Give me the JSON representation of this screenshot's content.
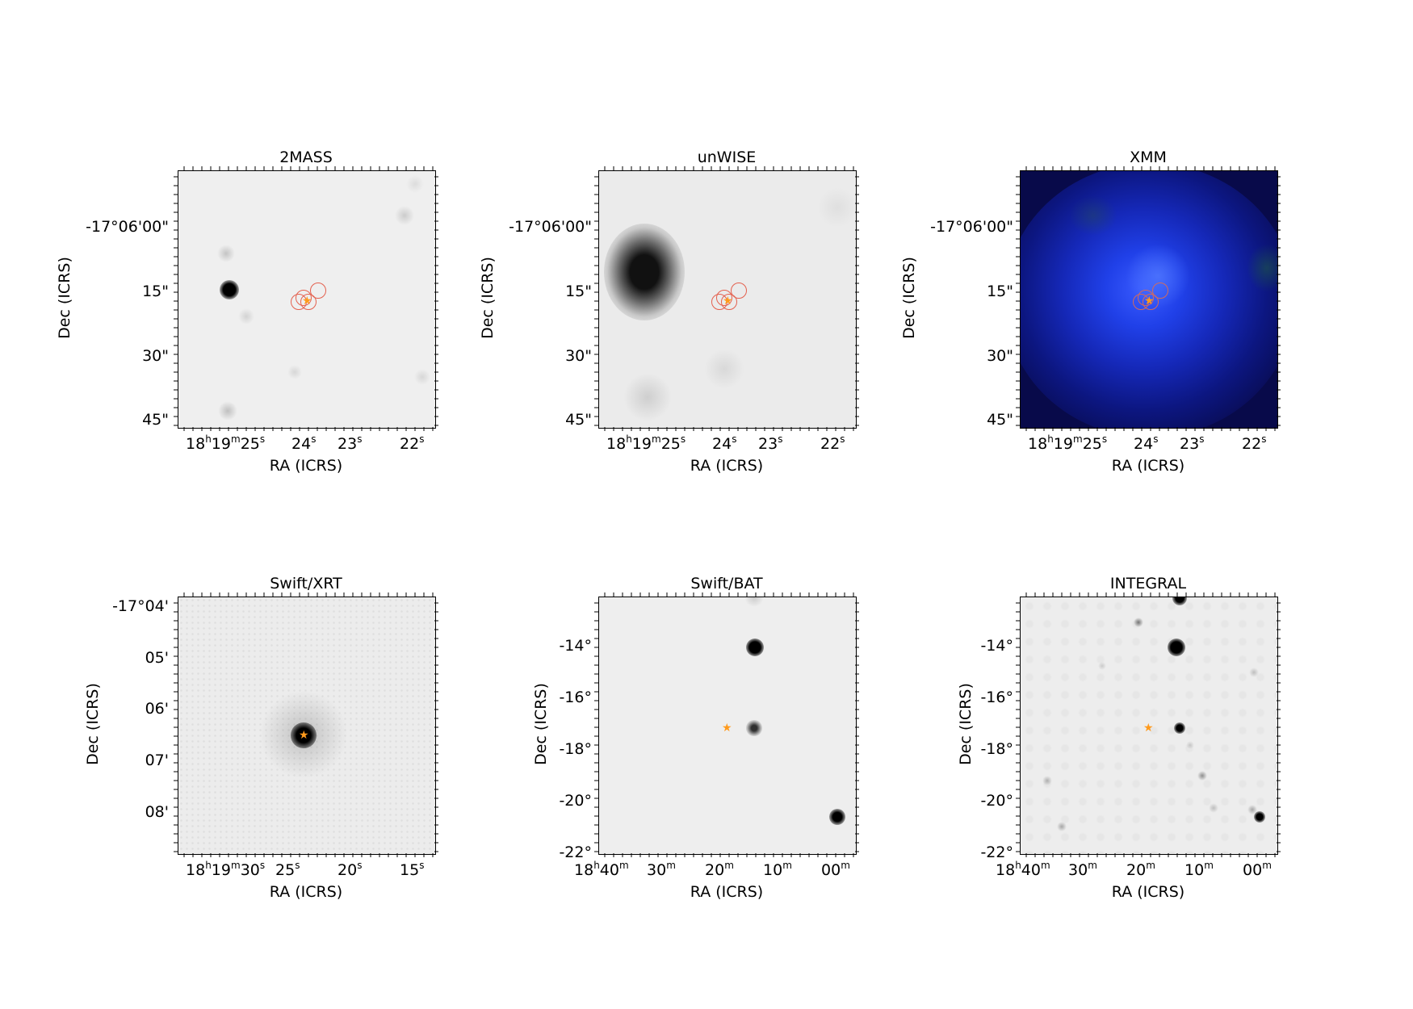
{
  "panels": [
    {
      "title": "2MASS",
      "xlabel": "RA (ICRS)",
      "ylabel": "Dec (ICRS)",
      "xticks": [
        "18h19m25s",
        "24s",
        "23s",
        "22s"
      ],
      "yticks": [
        "-17°06'00\"",
        "15\"",
        "30\"",
        "45\""
      ]
    },
    {
      "title": "unWISE",
      "xlabel": "RA (ICRS)",
      "ylabel": "Dec (ICRS)",
      "xticks": [
        "18h19m25s",
        "24s",
        "23s",
        "22s"
      ],
      "yticks": [
        "-17°06'00\"",
        "15\"",
        "30\"",
        "45\""
      ]
    },
    {
      "title": "XMM",
      "xlabel": "RA (ICRS)",
      "ylabel": "Dec (ICRS)",
      "xticks": [
        "18h19m25s",
        "24s",
        "23s",
        "22s"
      ],
      "yticks": [
        "-17°06'00\"",
        "15\"",
        "30\"",
        "45\""
      ]
    },
    {
      "title": "Swift/XRT",
      "xlabel": "RA (ICRS)",
      "ylabel": "Dec (ICRS)",
      "xticks": [
        "18h19m30s",
        "25s",
        "20s",
        "15s"
      ],
      "yticks": [
        "-17°04'",
        "05'",
        "06'",
        "07'",
        "08'"
      ]
    },
    {
      "title": "Swift/BAT",
      "xlabel": "RA (ICRS)",
      "ylabel": "Dec (ICRS)",
      "xticks": [
        "18h40m",
        "30m",
        "20m",
        "10m",
        "00m"
      ],
      "yticks": [
        "-14°",
        "-16°",
        "-18°",
        "-20°",
        "-22°"
      ]
    },
    {
      "title": "INTEGRAL",
      "xlabel": "RA (ICRS)",
      "ylabel": "Dec (ICRS)",
      "xticks": [
        "18h40m",
        "30m",
        "20m",
        "10m",
        "00m"
      ],
      "yticks": [
        "-14°",
        "-16°",
        "-18°",
        "-20°",
        "-22°"
      ]
    }
  ],
  "colors": {
    "marker": "#ff9a1c",
    "circles": "#e4604e",
    "xmm_bg": "#0a0a6e",
    "xmm_core": "#3a5cff"
  }
}
